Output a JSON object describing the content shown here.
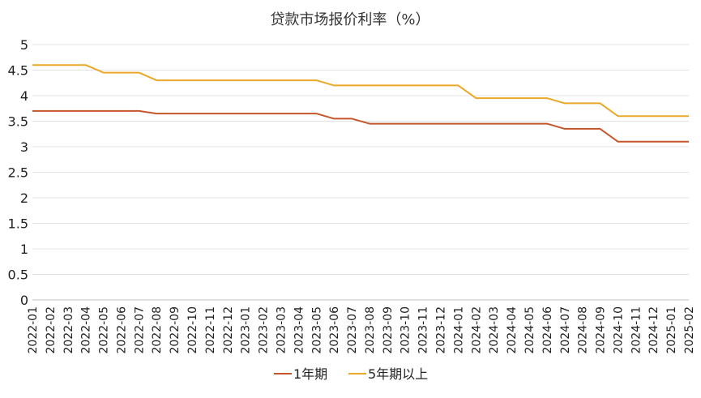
{
  "chart_data": {
    "type": "line",
    "title": "贷款市场报价利率（%）",
    "xlabel": "",
    "ylabel": "",
    "ylim": [
      0,
      5
    ],
    "yticks": [
      "0",
      "0.5",
      "1",
      "1.5",
      "2",
      "2.5",
      "3",
      "3.5",
      "4",
      "4.5",
      "5"
    ],
    "grid": true,
    "legend_position": "bottom",
    "x": [
      "2022-01",
      "2022-02",
      "2022-03",
      "2022-04",
      "2022-05",
      "2022-06",
      "2022-07",
      "2022-08",
      "2022-09",
      "2022-10",
      "2022-11",
      "2022-12",
      "2023-01",
      "2023-02",
      "2023-03",
      "2023-04",
      "2023-05",
      "2023-06",
      "2023-07",
      "2023-08",
      "2023-09",
      "2023-10",
      "2023-11",
      "2023-12",
      "2024-01",
      "2024-02",
      "2024-03",
      "2024-04",
      "2024-05",
      "2024-06",
      "2024-07",
      "2024-08",
      "2024-09",
      "2024-10",
      "2024-11",
      "2024-12",
      "2025-01",
      "2025-02"
    ],
    "series": [
      {
        "name": "1年期",
        "color": "#c5562a",
        "values": [
          3.7,
          3.7,
          3.7,
          3.7,
          3.7,
          3.7,
          3.7,
          3.65,
          3.65,
          3.65,
          3.65,
          3.65,
          3.65,
          3.65,
          3.65,
          3.65,
          3.65,
          3.55,
          3.55,
          3.45,
          3.45,
          3.45,
          3.45,
          3.45,
          3.45,
          3.45,
          3.45,
          3.45,
          3.45,
          3.45,
          3.35,
          3.35,
          3.35,
          3.1,
          3.1,
          3.1,
          3.1,
          3.1
        ]
      },
      {
        "name": "5年期以上",
        "color": "#eba827",
        "values": [
          4.6,
          4.6,
          4.6,
          4.6,
          4.45,
          4.45,
          4.45,
          4.3,
          4.3,
          4.3,
          4.3,
          4.3,
          4.3,
          4.3,
          4.3,
          4.3,
          4.3,
          4.2,
          4.2,
          4.2,
          4.2,
          4.2,
          4.2,
          4.2,
          4.2,
          3.95,
          3.95,
          3.95,
          3.95,
          3.95,
          3.85,
          3.85,
          3.85,
          3.6,
          3.6,
          3.6,
          3.6,
          3.6
        ]
      }
    ]
  }
}
